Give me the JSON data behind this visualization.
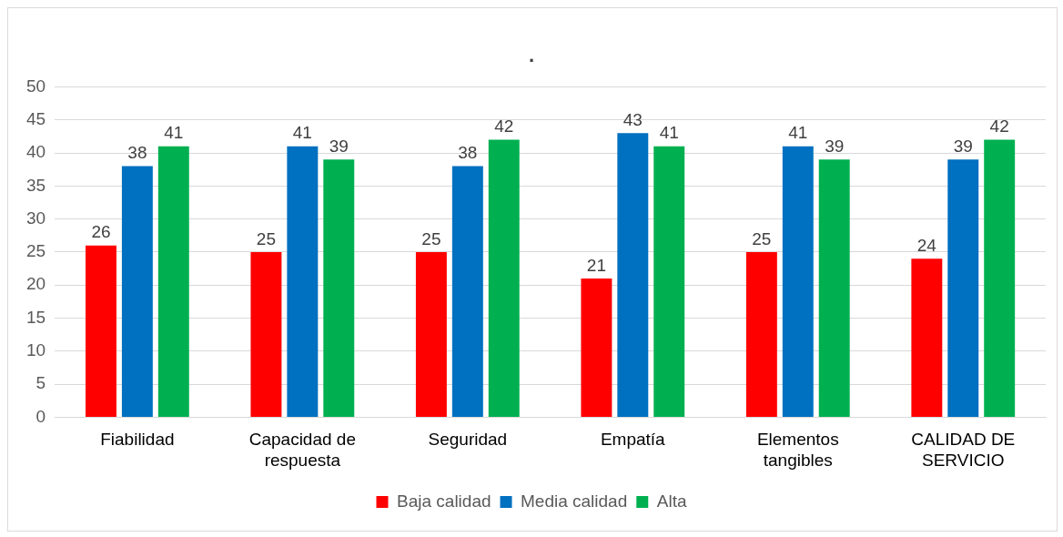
{
  "chart_data": {
    "type": "bar",
    "title": ".",
    "categories": [
      "Fiabilidad",
      "Capacidad de respuesta",
      "Seguridad",
      "Empatía",
      "Elementos tangibles",
      "CALIDAD DE SERVICIO"
    ],
    "series": [
      {
        "name": "Baja calidad",
        "color": "#ff0000",
        "values": [
          26,
          25,
          25,
          21,
          25,
          24
        ]
      },
      {
        "name": "Media calidad",
        "color": "#0070c0",
        "values": [
          38,
          41,
          38,
          43,
          41,
          39
        ]
      },
      {
        "name": "Alta",
        "color": "#00b050",
        "values": [
          41,
          39,
          42,
          41,
          39,
          42
        ]
      }
    ],
    "ylim": [
      0,
      50
    ],
    "yticks": [
      0,
      5,
      10,
      15,
      20,
      25,
      30,
      35,
      40,
      45,
      50
    ],
    "grid": "y",
    "legend": "bottom",
    "data_labels": true
  }
}
